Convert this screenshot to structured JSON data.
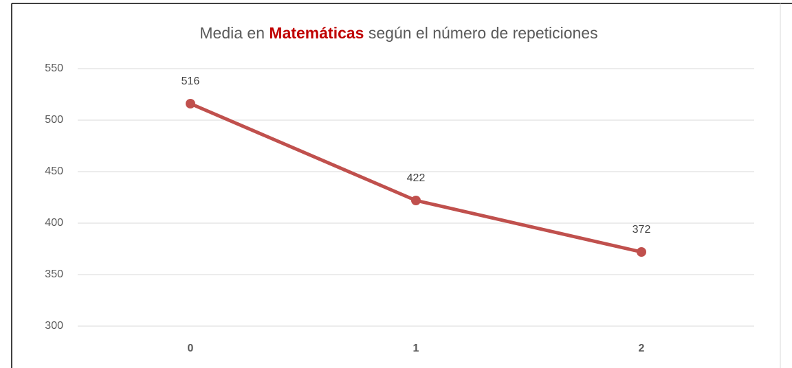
{
  "chart_data": {
    "type": "line",
    "title": [
      "Media en",
      "Matemáticas",
      "según el número de repeticiones"
    ],
    "categories": [
      "0",
      "1",
      "2"
    ],
    "values": [
      516,
      422,
      372
    ],
    "color": "#c0504d",
    "ylim": [
      300,
      550
    ],
    "yticks": [
      300,
      350,
      400,
      450,
      500,
      550
    ],
    "grid": true
  }
}
